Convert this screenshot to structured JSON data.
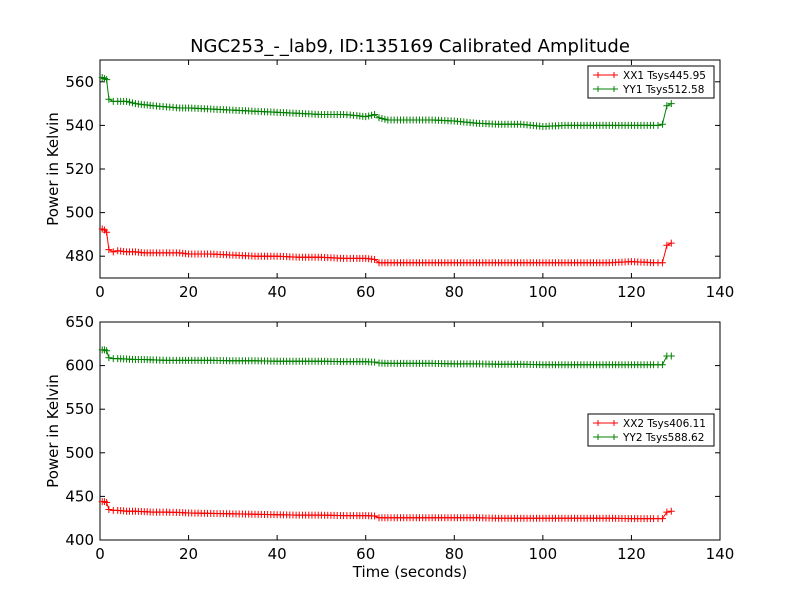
{
  "title": "NGC253_-_lab9, ID:135169 Calibrated Amplitude",
  "chart_data": [
    {
      "type": "line",
      "title": "NGC253_-_lab9, ID:135169 Calibrated Amplitude",
      "xlabel": "",
      "ylabel": "Power in Kelvin",
      "xlim": [
        0,
        140
      ],
      "ylim": [
        470,
        570
      ],
      "xticks": [
        "0",
        "20",
        "40",
        "60",
        "80",
        "100",
        "120",
        "140"
      ],
      "yticks": [
        "480",
        "500",
        "520",
        "540",
        "560"
      ],
      "grid": false,
      "legend_position": "top-right",
      "series": [
        {
          "name": "XX1 Tsys445.95",
          "color": "#ff0000",
          "marker": "+",
          "x": [
            0.5,
            1,
            1.5,
            2,
            3,
            4,
            6,
            8,
            10,
            12,
            15,
            18,
            20,
            25,
            30,
            35,
            40,
            45,
            50,
            55,
            58,
            60,
            62,
            63,
            65,
            70,
            75,
            80,
            85,
            90,
            95,
            100,
            105,
            110,
            115,
            120,
            125,
            126,
            127,
            128,
            129
          ],
          "y": [
            492.5,
            492,
            491,
            483,
            482,
            482.5,
            482,
            482,
            481.5,
            481.5,
            481.5,
            481.5,
            481,
            481,
            480.5,
            480,
            480,
            479.5,
            479.5,
            479,
            479,
            479,
            478.5,
            477,
            477,
            477,
            477,
            477,
            477,
            477,
            477,
            477,
            477,
            477,
            477,
            477.5,
            477,
            477,
            477,
            485,
            486
          ]
        },
        {
          "name": "YY1 Tsys512.58",
          "color": "#008000",
          "marker": "+",
          "x": [
            0.5,
            1,
            1.5,
            2,
            3,
            4,
            6,
            8,
            10,
            12,
            15,
            18,
            20,
            25,
            30,
            35,
            40,
            45,
            50,
            55,
            58,
            60,
            62,
            63,
            65,
            70,
            75,
            80,
            85,
            90,
            95,
            100,
            105,
            110,
            115,
            120,
            125,
            126,
            127,
            128,
            129
          ],
          "y": [
            562,
            561.5,
            561,
            552,
            551,
            551,
            551,
            550,
            549.5,
            549,
            548.5,
            548,
            548,
            547.5,
            547,
            546.5,
            546,
            545.5,
            545,
            545,
            544.5,
            544,
            545,
            543.5,
            542.5,
            542.5,
            542.5,
            542,
            541,
            540.5,
            540.5,
            539.5,
            540,
            540,
            540,
            540,
            540,
            540,
            540.5,
            549,
            550
          ]
        }
      ]
    },
    {
      "type": "line",
      "title": "",
      "xlabel": "Time (seconds)",
      "ylabel": "Power in Kelvin",
      "xlim": [
        0,
        140
      ],
      "ylim": [
        400,
        650
      ],
      "xticks": [
        "0",
        "20",
        "40",
        "60",
        "80",
        "100",
        "120",
        "140"
      ],
      "yticks": [
        "400",
        "450",
        "500",
        "550",
        "600",
        "650"
      ],
      "grid": false,
      "legend_position": "center-right",
      "series": [
        {
          "name": "XX2 Tsys406.11",
          "color": "#ff0000",
          "marker": "+",
          "x": [
            0.5,
            1,
            1.5,
            2,
            3,
            4,
            6,
            8,
            10,
            12,
            15,
            18,
            20,
            25,
            30,
            35,
            40,
            45,
            50,
            55,
            58,
            60,
            62,
            63,
            65,
            70,
            75,
            80,
            85,
            90,
            95,
            100,
            105,
            110,
            115,
            120,
            125,
            126,
            127,
            128,
            129
          ],
          "y": [
            444,
            444,
            443,
            435,
            434,
            434,
            433,
            433,
            432.5,
            432,
            432,
            431.5,
            431,
            430.5,
            430,
            429.5,
            429,
            428.5,
            428.5,
            428,
            428,
            428,
            427.5,
            425.5,
            425.5,
            425.5,
            425.5,
            425.5,
            425.5,
            425,
            425,
            425,
            425,
            425,
            425,
            424.5,
            424.5,
            424.5,
            424.5,
            432,
            433
          ]
        },
        {
          "name": "YY2 Tsys588.62",
          "color": "#008000",
          "marker": "+",
          "x": [
            0.5,
            1,
            1.5,
            2,
            3,
            4,
            6,
            8,
            10,
            12,
            15,
            18,
            20,
            25,
            30,
            35,
            40,
            45,
            50,
            55,
            58,
            60,
            62,
            63,
            65,
            70,
            75,
            80,
            85,
            90,
            95,
            100,
            105,
            110,
            115,
            120,
            125,
            126,
            127,
            128,
            129
          ],
          "y": [
            618,
            618,
            617,
            609,
            608,
            608,
            607.5,
            607,
            607,
            606.5,
            606,
            606,
            606,
            606,
            605.5,
            605.5,
            605,
            605,
            605,
            604.5,
            604.5,
            604.5,
            604,
            603,
            602.5,
            602.5,
            602.5,
            602,
            602,
            601.5,
            601.5,
            601,
            601,
            601,
            601,
            601,
            601,
            601,
            601,
            611,
            611
          ]
        }
      ]
    }
  ]
}
